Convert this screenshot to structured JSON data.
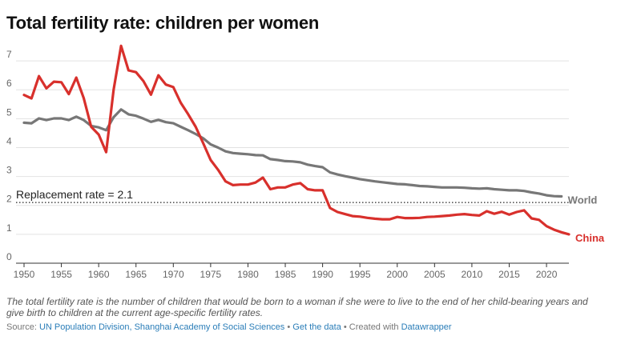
{
  "title": "Total fertility rate: children per women",
  "note": "The total fertility rate is the number of children that would be born to a woman if she were to live to the end of her child-bearing years and give birth to children at the current age-specific fertility rates.",
  "footer": {
    "source_prefix": "Source: ",
    "source_text": "UN Population Division, Shanghai Academy of Social Sciences",
    "separator1": " • ",
    "get_data": "Get the data",
    "separator2": " • Created with ",
    "created_with": "Datawrapper"
  },
  "colors": {
    "world": "#777777",
    "china": "#d8302c",
    "grid": "#e2e2e2",
    "reference": "#222222"
  },
  "chart_data": {
    "type": "line",
    "title": "Total fertility rate: children per women",
    "xlabel": "",
    "ylabel": "",
    "xlim": [
      1950,
      2023
    ],
    "ylim": [
      0,
      7.5
    ],
    "x_ticks": [
      "1950",
      "1955",
      "1960",
      "1965",
      "1970",
      "1975",
      "1980",
      "1985",
      "1990",
      "1995",
      "2000",
      "2005",
      "2010",
      "2015",
      "2020"
    ],
    "y_ticks": [
      "0",
      "1",
      "2",
      "3",
      "4",
      "5",
      "6",
      "7"
    ],
    "grid": true,
    "reference_line": {
      "value": 2.1,
      "label": "Replacement rate = 2.1"
    },
    "series": [
      {
        "name": "World",
        "color": "#777777",
        "points": [
          [
            1950,
            4.86
          ],
          [
            1951,
            4.84
          ],
          [
            1952,
            5.01
          ],
          [
            1953,
            4.95
          ],
          [
            1954,
            5.01
          ],
          [
            1955,
            5.01
          ],
          [
            1956,
            4.95
          ],
          [
            1957,
            5.07
          ],
          [
            1958,
            4.95
          ],
          [
            1959,
            4.75
          ],
          [
            1960,
            4.7
          ],
          [
            1961,
            4.6
          ],
          [
            1962,
            5.05
          ],
          [
            1963,
            5.32
          ],
          [
            1964,
            5.15
          ],
          [
            1965,
            5.1
          ],
          [
            1966,
            5.0
          ],
          [
            1967,
            4.89
          ],
          [
            1968,
            4.96
          ],
          [
            1969,
            4.88
          ],
          [
            1970,
            4.84
          ],
          [
            1971,
            4.72
          ],
          [
            1972,
            4.6
          ],
          [
            1973,
            4.47
          ],
          [
            1974,
            4.32
          ],
          [
            1975,
            4.11
          ],
          [
            1976,
            4.0
          ],
          [
            1977,
            3.87
          ],
          [
            1978,
            3.81
          ],
          [
            1979,
            3.79
          ],
          [
            1980,
            3.77
          ],
          [
            1981,
            3.74
          ],
          [
            1982,
            3.73
          ],
          [
            1983,
            3.6
          ],
          [
            1984,
            3.57
          ],
          [
            1985,
            3.53
          ],
          [
            1986,
            3.52
          ],
          [
            1987,
            3.49
          ],
          [
            1988,
            3.41
          ],
          [
            1989,
            3.36
          ],
          [
            1990,
            3.32
          ],
          [
            1991,
            3.14
          ],
          [
            1992,
            3.07
          ],
          [
            1993,
            3.01
          ],
          [
            1994,
            2.96
          ],
          [
            1995,
            2.91
          ],
          [
            1996,
            2.87
          ],
          [
            1997,
            2.83
          ],
          [
            1998,
            2.8
          ],
          [
            1999,
            2.77
          ],
          [
            2000,
            2.74
          ],
          [
            2001,
            2.73
          ],
          [
            2002,
            2.7
          ],
          [
            2003,
            2.67
          ],
          [
            2004,
            2.66
          ],
          [
            2005,
            2.64
          ],
          [
            2006,
            2.62
          ],
          [
            2007,
            2.62
          ],
          [
            2008,
            2.62
          ],
          [
            2009,
            2.61
          ],
          [
            2010,
            2.59
          ],
          [
            2011,
            2.58
          ],
          [
            2012,
            2.59
          ],
          [
            2013,
            2.56
          ],
          [
            2014,
            2.54
          ],
          [
            2015,
            2.52
          ],
          [
            2016,
            2.52
          ],
          [
            2017,
            2.5
          ],
          [
            2018,
            2.45
          ],
          [
            2019,
            2.41
          ],
          [
            2020,
            2.35
          ],
          [
            2021,
            2.32
          ],
          [
            2022,
            2.31
          ]
        ]
      },
      {
        "name": "China",
        "color": "#d8302c",
        "points": [
          [
            1950,
            5.82
          ],
          [
            1951,
            5.7
          ],
          [
            1952,
            6.47
          ],
          [
            1953,
            6.05
          ],
          [
            1954,
            6.28
          ],
          [
            1955,
            6.26
          ],
          [
            1956,
            5.85
          ],
          [
            1957,
            6.42
          ],
          [
            1958,
            5.71
          ],
          [
            1959,
            4.72
          ],
          [
            1960,
            4.45
          ],
          [
            1961,
            3.84
          ],
          [
            1962,
            6.0
          ],
          [
            1963,
            7.52
          ],
          [
            1964,
            6.67
          ],
          [
            1965,
            6.61
          ],
          [
            1966,
            6.3
          ],
          [
            1967,
            5.83
          ],
          [
            1968,
            6.5
          ],
          [
            1969,
            6.18
          ],
          [
            1970,
            6.09
          ],
          [
            1971,
            5.55
          ],
          [
            1972,
            5.15
          ],
          [
            1973,
            4.72
          ],
          [
            1974,
            4.15
          ],
          [
            1975,
            3.57
          ],
          [
            1976,
            3.23
          ],
          [
            1977,
            2.83
          ],
          [
            1978,
            2.7
          ],
          [
            1979,
            2.72
          ],
          [
            1980,
            2.72
          ],
          [
            1981,
            2.79
          ],
          [
            1982,
            2.96
          ],
          [
            1983,
            2.56
          ],
          [
            1984,
            2.62
          ],
          [
            1985,
            2.62
          ],
          [
            1986,
            2.72
          ],
          [
            1987,
            2.77
          ],
          [
            1988,
            2.56
          ],
          [
            1989,
            2.52
          ],
          [
            1990,
            2.52
          ],
          [
            1991,
            1.91
          ],
          [
            1992,
            1.77
          ],
          [
            1993,
            1.7
          ],
          [
            1994,
            1.63
          ],
          [
            1995,
            1.61
          ],
          [
            1996,
            1.57
          ],
          [
            1997,
            1.54
          ],
          [
            1998,
            1.52
          ],
          [
            1999,
            1.52
          ],
          [
            2000,
            1.6
          ],
          [
            2001,
            1.56
          ],
          [
            2002,
            1.56
          ],
          [
            2003,
            1.57
          ],
          [
            2004,
            1.6
          ],
          [
            2005,
            1.61
          ],
          [
            2006,
            1.63
          ],
          [
            2007,
            1.65
          ],
          [
            2008,
            1.68
          ],
          [
            2009,
            1.7
          ],
          [
            2010,
            1.67
          ],
          [
            2011,
            1.65
          ],
          [
            2012,
            1.8
          ],
          [
            2013,
            1.71
          ],
          [
            2014,
            1.78
          ],
          [
            2015,
            1.68
          ],
          [
            2016,
            1.77
          ],
          [
            2017,
            1.83
          ],
          [
            2018,
            1.55
          ],
          [
            2019,
            1.5
          ],
          [
            2020,
            1.28
          ],
          [
            2021,
            1.16
          ],
          [
            2022,
            1.07
          ],
          [
            2023,
            1.0
          ]
        ]
      }
    ]
  }
}
